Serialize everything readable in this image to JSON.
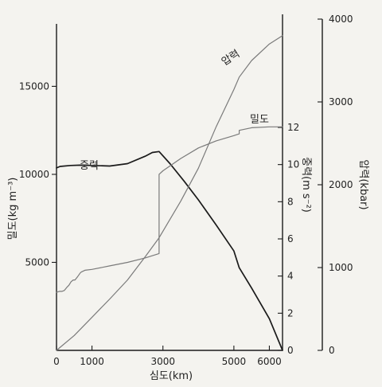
{
  "chart_data": {
    "type": "line",
    "xlabel": "심도(km)",
    "xlim": [
      0,
      6371
    ],
    "x_ticks": [
      "0",
      "1000",
      "3000",
      "5000",
      "6000"
    ],
    "axes": {
      "density": {
        "label": "밀도(kg m⁻³)",
        "lim": [
          0,
          19000
        ],
        "ticks": [
          "5000",
          "10000",
          "15000"
        ]
      },
      "gravity": {
        "label": "중력(m s⁻²)",
        "lim": [
          0,
          18
        ],
        "ticks": [
          "0",
          "2",
          "4",
          "6",
          "8",
          "10",
          "12"
        ]
      },
      "pressure": {
        "label": "압력(kbar)",
        "lim": [
          0,
          4000
        ],
        "ticks": [
          "0",
          "1000",
          "2000",
          "3000",
          "4000"
        ]
      }
    },
    "series": [
      {
        "name": "중력",
        "axis": "gravity",
        "color": "#1a1a1a",
        "x": [
          0,
          100,
          400,
          670,
          1000,
          1500,
          2000,
          2500,
          2700,
          2891,
          3200,
          3600,
          4000,
          4500,
          5000,
          5150,
          5500,
          6000,
          6371
        ],
        "y": [
          9.82,
          9.9,
          9.95,
          9.97,
          9.95,
          9.92,
          10.05,
          10.45,
          10.65,
          10.7,
          10.05,
          9.1,
          8.1,
          6.75,
          5.35,
          4.45,
          3.35,
          1.7,
          0
        ]
      },
      {
        "name": "밀도",
        "axis": "density",
        "color": "#7a7a7a",
        "x": [
          0,
          80,
          150,
          220,
          300,
          350,
          410,
          470,
          520,
          600,
          670,
          700,
          800,
          1000,
          1500,
          2000,
          2500,
          2891,
          2891,
          3000,
          3500,
          4000,
          4500,
          5000,
          5150,
          5150,
          5500,
          6000,
          6371
        ],
        "y": [
          3300,
          3350,
          3350,
          3400,
          3600,
          3700,
          3900,
          4000,
          4000,
          4200,
          4400,
          4450,
          4550,
          4600,
          4800,
          5000,
          5250,
          5500,
          10000,
          10200,
          10900,
          11500,
          11900,
          12200,
          12300,
          12500,
          12650,
          12700,
          12700
        ]
      },
      {
        "name": "압력",
        "axis": "pressure",
        "color": "#7a7a7a",
        "x": [
          0,
          500,
          1000,
          1500,
          2000,
          2500,
          2891,
          3500,
          4000,
          4500,
          5000,
          5150,
          5500,
          6000,
          6371
        ],
        "y": [
          0,
          180,
          400,
          620,
          850,
          1130,
          1360,
          1800,
          2200,
          2700,
          3150,
          3300,
          3500,
          3700,
          3800
        ]
      }
    ]
  }
}
